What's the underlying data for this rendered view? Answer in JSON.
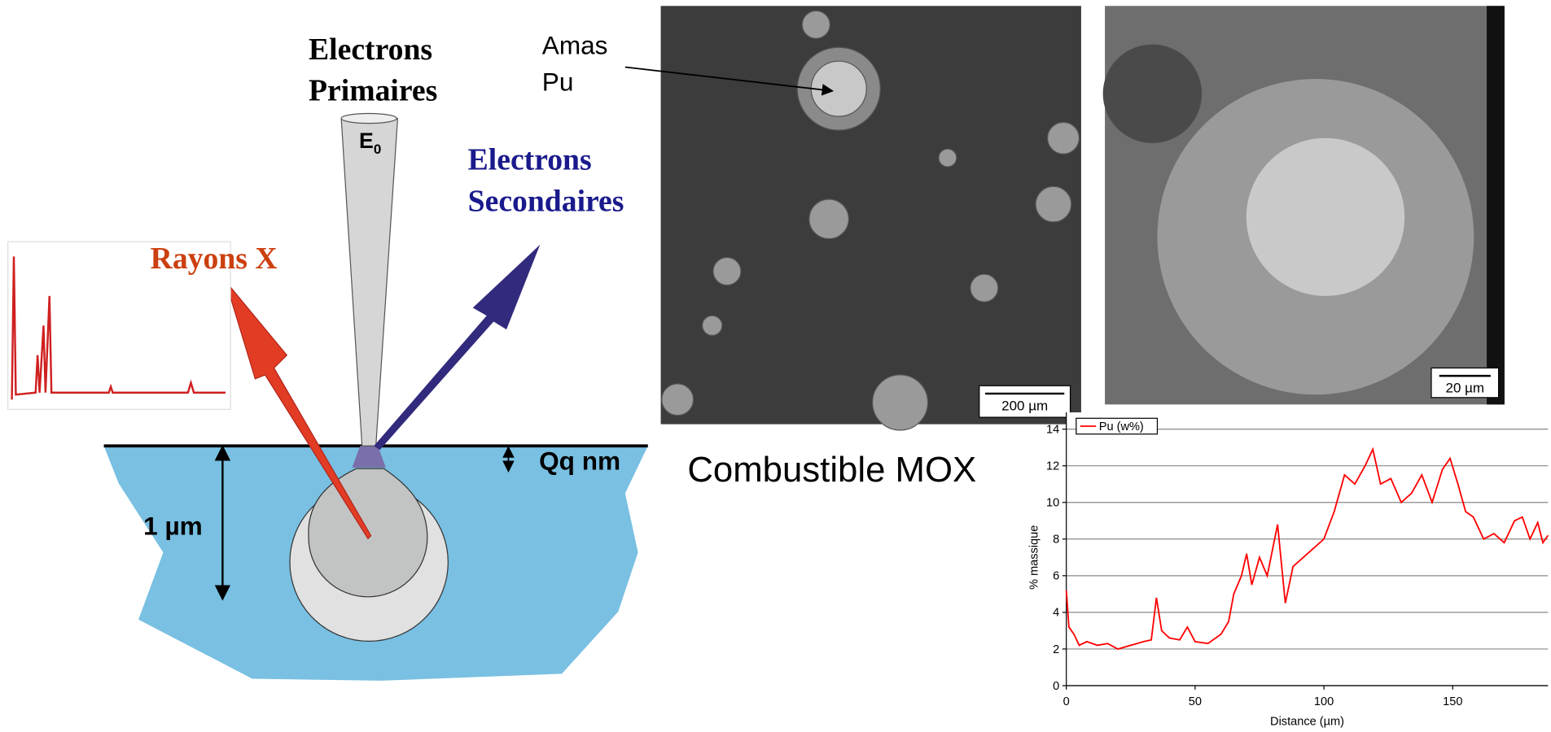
{
  "diagram": {
    "primary_electrons": [
      "Electrons",
      "Primaires"
    ],
    "beam_energy": {
      "main": "E",
      "sub": "0"
    },
    "secondary_electrons": [
      "Electrons",
      "Secondaires"
    ],
    "xrays": "Rayons X",
    "surface_depth": "Qq nm",
    "volume_depth": "1 µm",
    "cluster_label": [
      "Amas",
      "Pu"
    ],
    "scale_bar_large": "200 µm",
    "scale_bar_small": "20 µm",
    "caption": "Combustible MOX"
  },
  "chart_data": {
    "type": "line",
    "x_label": "Distance (µm)",
    "y_label": "% massique",
    "x": [
      0,
      1,
      3,
      5,
      8,
      12,
      16,
      20,
      25,
      30,
      33,
      35,
      37,
      40,
      44,
      47,
      50,
      55,
      60,
      63,
      65,
      68,
      70,
      72,
      75,
      78,
      82,
      85,
      88,
      92,
      96,
      100,
      104,
      108,
      112,
      116,
      119,
      122,
      126,
      130,
      134,
      138,
      142,
      146,
      149,
      152,
      155,
      158,
      162,
      166,
      170,
      174,
      177,
      180,
      183,
      185,
      187
    ],
    "series": [
      {
        "name": "Pu (w%)",
        "color": "#ff0000",
        "values": [
          5.2,
          3.2,
          2.8,
          2.2,
          2.4,
          2.2,
          2.3,
          2.0,
          2.2,
          2.4,
          2.5,
          4.8,
          3.0,
          2.6,
          2.5,
          3.2,
          2.4,
          2.3,
          2.8,
          3.5,
          5.0,
          6.0,
          7.2,
          5.5,
          7.0,
          6.0,
          8.8,
          4.5,
          6.5,
          7.0,
          7.5,
          8.0,
          9.5,
          11.5,
          11.0,
          12.0,
          12.9,
          11.0,
          11.3,
          10.0,
          10.5,
          11.5,
          10.0,
          11.8,
          12.4,
          11.0,
          9.5,
          9.2,
          8.0,
          8.3,
          7.8,
          9.0,
          9.2,
          8.0,
          8.9,
          7.8,
          8.2
        ]
      }
    ],
    "xlim": [
      0,
      187
    ],
    "ylim": [
      0,
      14
    ],
    "xticks": [
      0,
      50,
      100,
      150
    ],
    "yticks": [
      0,
      2,
      4,
      6,
      8,
      10,
      12,
      14
    ],
    "grid": true,
    "legend": "top-left"
  }
}
